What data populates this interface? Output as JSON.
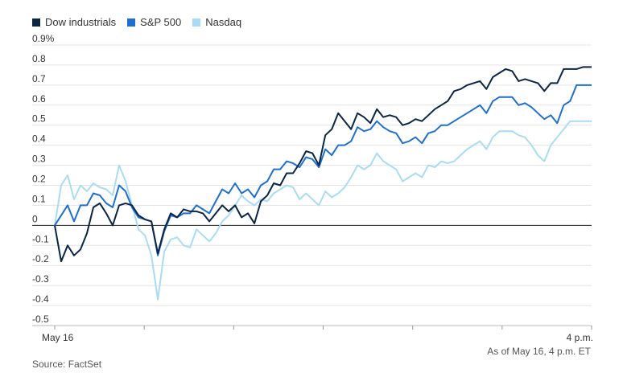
{
  "legend": [
    {
      "label": "Dow industrials",
      "color": "#0b2545"
    },
    {
      "label": "S&P 500",
      "color": "#1f6fd1"
    },
    {
      "label": "Nasdaq",
      "color": "#a9dcf3"
    }
  ],
  "note": "As of May 16, 4 p.m. ET",
  "source": "Source: FactSet",
  "chart_data": {
    "type": "line",
    "y_ticks": [
      "0.9%",
      "0.8",
      "0.7",
      "0.6",
      "0.5",
      "0.4",
      "0.3",
      "0.2",
      "0.1",
      "0",
      "-0.1",
      "-0.2",
      "-0.3",
      "-0.4",
      "-0.5"
    ],
    "x_tick_labels": [
      {
        "label": "May 16",
        "x": 0
      },
      {
        "label": "4 p.m.",
        "x": 1
      }
    ],
    "x_range": [
      0,
      1
    ],
    "ylim": [
      -0.5,
      0.9
    ],
    "grid": "horizontal",
    "legend_position": "top-left",
    "series": [
      {
        "name": "Dow industrials",
        "color": "#0b2545",
        "points": [
          [
            0.0,
            0.0
          ],
          [
            0.012,
            -0.18
          ],
          [
            0.024,
            -0.1
          ],
          [
            0.036,
            -0.15
          ],
          [
            0.048,
            -0.12
          ],
          [
            0.06,
            -0.04
          ],
          [
            0.072,
            0.09
          ],
          [
            0.084,
            0.11
          ],
          [
            0.096,
            0.06
          ],
          [
            0.108,
            0.0
          ],
          [
            0.12,
            0.1
          ],
          [
            0.132,
            0.11
          ],
          [
            0.144,
            0.1
          ],
          [
            0.156,
            0.05
          ],
          [
            0.168,
            0.03
          ],
          [
            0.18,
            0.02
          ],
          [
            0.192,
            -0.14
          ],
          [
            0.204,
            -0.02
          ],
          [
            0.216,
            0.06
          ],
          [
            0.228,
            0.04
          ],
          [
            0.24,
            0.08
          ],
          [
            0.252,
            0.07
          ],
          [
            0.264,
            0.07
          ],
          [
            0.276,
            0.06
          ],
          [
            0.288,
            0.02
          ],
          [
            0.3,
            0.06
          ],
          [
            0.312,
            0.1
          ],
          [
            0.324,
            0.07
          ],
          [
            0.336,
            0.1
          ],
          [
            0.348,
            0.04
          ],
          [
            0.36,
            0.06
          ],
          [
            0.372,
            0.01
          ],
          [
            0.384,
            0.12
          ],
          [
            0.396,
            0.15
          ],
          [
            0.408,
            0.21
          ],
          [
            0.42,
            0.2
          ],
          [
            0.432,
            0.26
          ],
          [
            0.444,
            0.26
          ],
          [
            0.456,
            0.31
          ],
          [
            0.468,
            0.37
          ],
          [
            0.48,
            0.36
          ],
          [
            0.492,
            0.3
          ],
          [
            0.504,
            0.45
          ],
          [
            0.516,
            0.48
          ],
          [
            0.528,
            0.56
          ],
          [
            0.54,
            0.52
          ],
          [
            0.552,
            0.48
          ],
          [
            0.564,
            0.56
          ],
          [
            0.576,
            0.54
          ],
          [
            0.588,
            0.51
          ],
          [
            0.6,
            0.58
          ],
          [
            0.612,
            0.54
          ],
          [
            0.624,
            0.55
          ],
          [
            0.636,
            0.54
          ],
          [
            0.648,
            0.5
          ],
          [
            0.66,
            0.51
          ],
          [
            0.672,
            0.53
          ],
          [
            0.684,
            0.52
          ],
          [
            0.696,
            0.55
          ],
          [
            0.708,
            0.58
          ],
          [
            0.72,
            0.6
          ],
          [
            0.732,
            0.62
          ],
          [
            0.744,
            0.67
          ],
          [
            0.756,
            0.68
          ],
          [
            0.768,
            0.7
          ],
          [
            0.78,
            0.71
          ],
          [
            0.792,
            0.72
          ],
          [
            0.804,
            0.68
          ],
          [
            0.816,
            0.74
          ],
          [
            0.828,
            0.76
          ],
          [
            0.84,
            0.78
          ],
          [
            0.852,
            0.77
          ],
          [
            0.864,
            0.72
          ],
          [
            0.876,
            0.73
          ],
          [
            0.888,
            0.72
          ],
          [
            0.9,
            0.71
          ],
          [
            0.912,
            0.67
          ],
          [
            0.924,
            0.71
          ],
          [
            0.936,
            0.71
          ],
          [
            0.948,
            0.78
          ],
          [
            0.96,
            0.78
          ],
          [
            0.972,
            0.78
          ],
          [
            0.984,
            0.79
          ],
          [
            1.0,
            0.79
          ]
        ]
      },
      {
        "name": "S&P 500",
        "color": "#1f6fd1",
        "points": [
          [
            0.0,
            0.0
          ],
          [
            0.012,
            0.05
          ],
          [
            0.024,
            0.1
          ],
          [
            0.036,
            0.02
          ],
          [
            0.048,
            0.1
          ],
          [
            0.06,
            0.1
          ],
          [
            0.072,
            0.16
          ],
          [
            0.084,
            0.15
          ],
          [
            0.096,
            0.11
          ],
          [
            0.108,
            0.09
          ],
          [
            0.12,
            0.2
          ],
          [
            0.132,
            0.17
          ],
          [
            0.144,
            0.09
          ],
          [
            0.156,
            0.04
          ],
          [
            0.168,
            0.03
          ],
          [
            0.18,
            0.02
          ],
          [
            0.192,
            -0.15
          ],
          [
            0.204,
            -0.03
          ],
          [
            0.216,
            0.05
          ],
          [
            0.228,
            0.04
          ],
          [
            0.24,
            0.06
          ],
          [
            0.252,
            0.06
          ],
          [
            0.264,
            0.1
          ],
          [
            0.276,
            0.08
          ],
          [
            0.288,
            0.06
          ],
          [
            0.3,
            0.12
          ],
          [
            0.312,
            0.18
          ],
          [
            0.324,
            0.16
          ],
          [
            0.336,
            0.21
          ],
          [
            0.348,
            0.16
          ],
          [
            0.36,
            0.18
          ],
          [
            0.372,
            0.14
          ],
          [
            0.384,
            0.2
          ],
          [
            0.396,
            0.22
          ],
          [
            0.408,
            0.28
          ],
          [
            0.42,
            0.28
          ],
          [
            0.432,
            0.32
          ],
          [
            0.444,
            0.31
          ],
          [
            0.456,
            0.29
          ],
          [
            0.468,
            0.34
          ],
          [
            0.48,
            0.33
          ],
          [
            0.492,
            0.29
          ],
          [
            0.504,
            0.38
          ],
          [
            0.516,
            0.35
          ],
          [
            0.528,
            0.4
          ],
          [
            0.54,
            0.4
          ],
          [
            0.552,
            0.42
          ],
          [
            0.564,
            0.49
          ],
          [
            0.576,
            0.47
          ],
          [
            0.588,
            0.48
          ],
          [
            0.6,
            0.52
          ],
          [
            0.612,
            0.49
          ],
          [
            0.624,
            0.47
          ],
          [
            0.636,
            0.46
          ],
          [
            0.648,
            0.41
          ],
          [
            0.66,
            0.42
          ],
          [
            0.672,
            0.44
          ],
          [
            0.684,
            0.41
          ],
          [
            0.696,
            0.46
          ],
          [
            0.708,
            0.47
          ],
          [
            0.72,
            0.5
          ],
          [
            0.732,
            0.5
          ],
          [
            0.744,
            0.52
          ],
          [
            0.756,
            0.54
          ],
          [
            0.768,
            0.56
          ],
          [
            0.78,
            0.58
          ],
          [
            0.792,
            0.6
          ],
          [
            0.804,
            0.56
          ],
          [
            0.816,
            0.62
          ],
          [
            0.828,
            0.64
          ],
          [
            0.84,
            0.64
          ],
          [
            0.852,
            0.64
          ],
          [
            0.864,
            0.6
          ],
          [
            0.876,
            0.61
          ],
          [
            0.888,
            0.59
          ],
          [
            0.9,
            0.56
          ],
          [
            0.912,
            0.53
          ],
          [
            0.924,
            0.55
          ],
          [
            0.936,
            0.51
          ],
          [
            0.948,
            0.6
          ],
          [
            0.96,
            0.62
          ],
          [
            0.972,
            0.7
          ],
          [
            0.984,
            0.7
          ],
          [
            1.0,
            0.7
          ]
        ]
      },
      {
        "name": "Nasdaq",
        "color": "#a9dcf3",
        "points": [
          [
            0.0,
            0.0
          ],
          [
            0.012,
            0.2
          ],
          [
            0.024,
            0.25
          ],
          [
            0.036,
            0.13
          ],
          [
            0.048,
            0.2
          ],
          [
            0.06,
            0.17
          ],
          [
            0.072,
            0.21
          ],
          [
            0.084,
            0.19
          ],
          [
            0.096,
            0.18
          ],
          [
            0.108,
            0.15
          ],
          [
            0.12,
            0.3
          ],
          [
            0.132,
            0.22
          ],
          [
            0.144,
            0.1
          ],
          [
            0.156,
            -0.02
          ],
          [
            0.168,
            -0.05
          ],
          [
            0.18,
            -0.15
          ],
          [
            0.192,
            -0.37
          ],
          [
            0.204,
            -0.13
          ],
          [
            0.216,
            -0.07
          ],
          [
            0.228,
            -0.06
          ],
          [
            0.24,
            -0.1
          ],
          [
            0.252,
            -0.11
          ],
          [
            0.264,
            -0.02
          ],
          [
            0.276,
            -0.05
          ],
          [
            0.288,
            -0.08
          ],
          [
            0.3,
            -0.04
          ],
          [
            0.312,
            0.02
          ],
          [
            0.324,
            0.05
          ],
          [
            0.336,
            0.1
          ],
          [
            0.348,
            0.15
          ],
          [
            0.36,
            0.12
          ],
          [
            0.372,
            0.1
          ],
          [
            0.384,
            0.13
          ],
          [
            0.396,
            0.12
          ],
          [
            0.408,
            0.16
          ],
          [
            0.42,
            0.18
          ],
          [
            0.432,
            0.2
          ],
          [
            0.444,
            0.19
          ],
          [
            0.456,
            0.13
          ],
          [
            0.468,
            0.16
          ],
          [
            0.48,
            0.13
          ],
          [
            0.492,
            0.1
          ],
          [
            0.504,
            0.17
          ],
          [
            0.516,
            0.14
          ],
          [
            0.528,
            0.16
          ],
          [
            0.54,
            0.19
          ],
          [
            0.552,
            0.24
          ],
          [
            0.564,
            0.3
          ],
          [
            0.576,
            0.28
          ],
          [
            0.588,
            0.3
          ],
          [
            0.6,
            0.36
          ],
          [
            0.612,
            0.32
          ],
          [
            0.624,
            0.3
          ],
          [
            0.636,
            0.28
          ],
          [
            0.648,
            0.22
          ],
          [
            0.66,
            0.24
          ],
          [
            0.672,
            0.26
          ],
          [
            0.684,
            0.24
          ],
          [
            0.696,
            0.3
          ],
          [
            0.708,
            0.29
          ],
          [
            0.72,
            0.32
          ],
          [
            0.732,
            0.31
          ],
          [
            0.744,
            0.32
          ],
          [
            0.756,
            0.35
          ],
          [
            0.768,
            0.38
          ],
          [
            0.78,
            0.4
          ],
          [
            0.792,
            0.42
          ],
          [
            0.804,
            0.38
          ],
          [
            0.816,
            0.44
          ],
          [
            0.828,
            0.47
          ],
          [
            0.84,
            0.47
          ],
          [
            0.852,
            0.47
          ],
          [
            0.864,
            0.45
          ],
          [
            0.876,
            0.44
          ],
          [
            0.888,
            0.4
          ],
          [
            0.9,
            0.35
          ],
          [
            0.912,
            0.32
          ],
          [
            0.924,
            0.4
          ],
          [
            0.936,
            0.44
          ],
          [
            0.948,
            0.48
          ],
          [
            0.96,
            0.52
          ],
          [
            0.972,
            0.52
          ],
          [
            0.984,
            0.52
          ],
          [
            1.0,
            0.52
          ]
        ]
      }
    ]
  }
}
